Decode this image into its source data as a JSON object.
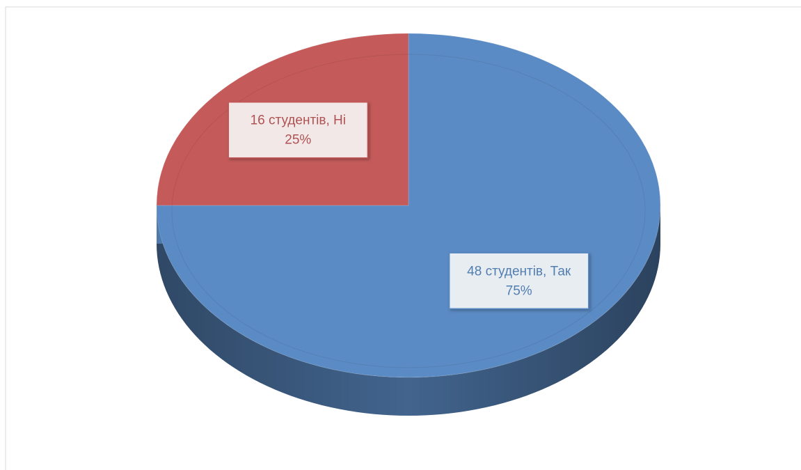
{
  "chart_data": {
    "type": "pie",
    "three_d": true,
    "categories": [
      "48 студентів, Так",
      "16 студентів, Ні"
    ],
    "values": [
      75,
      25
    ],
    "value_labels": [
      "75%",
      "25%"
    ],
    "colors": [
      "#5b8bc4",
      "#c45b5a"
    ]
  }
}
